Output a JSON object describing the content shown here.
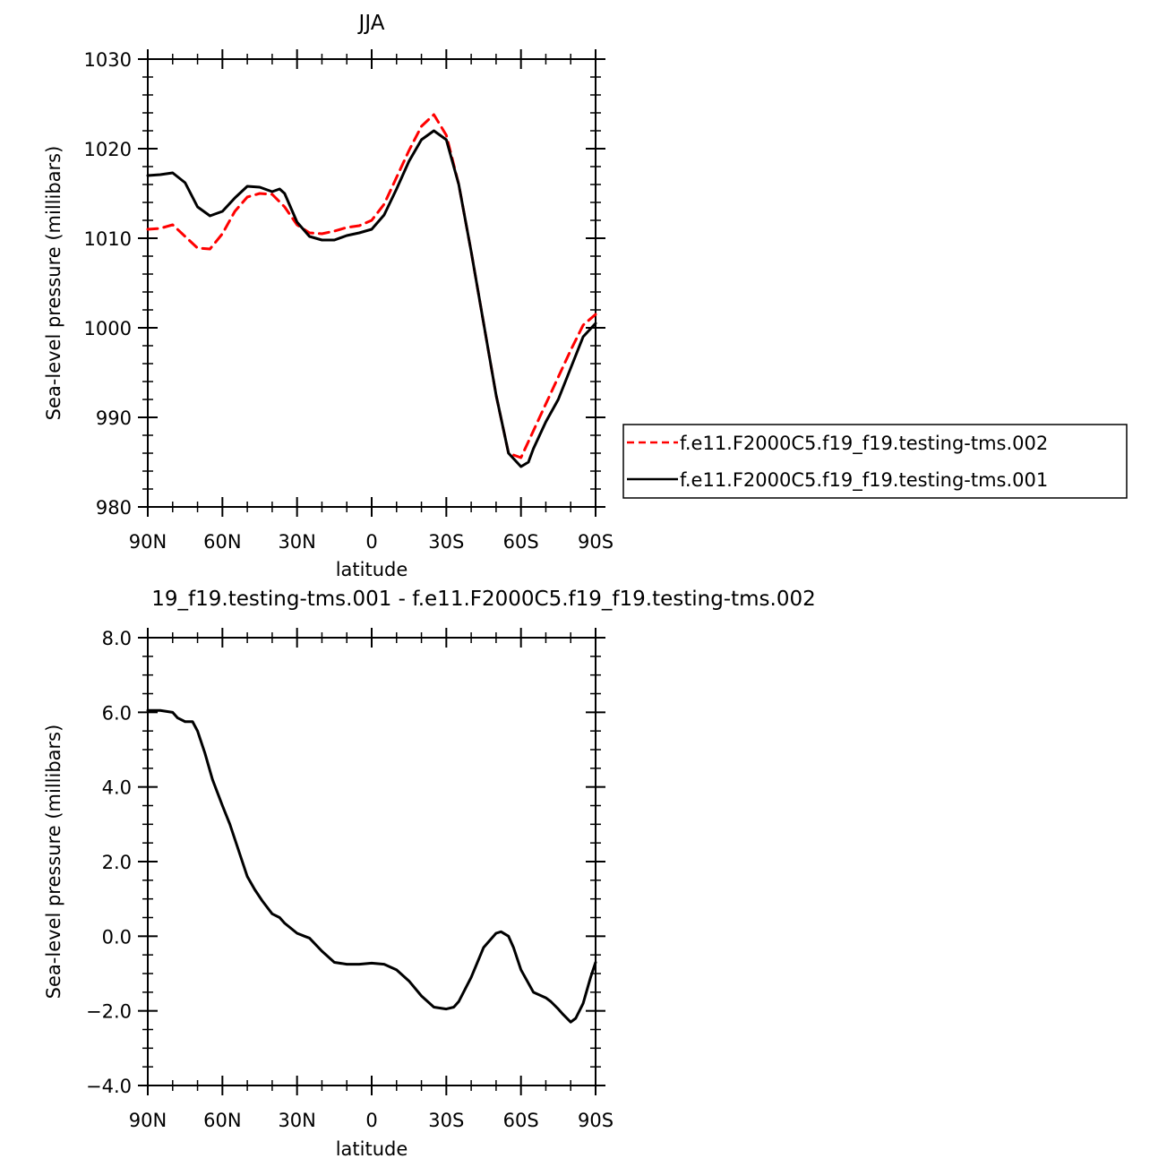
{
  "chart_data": [
    {
      "type": "line",
      "title": "JJA",
      "xlabel": "latitude",
      "ylabel": "Sea-level pressure (millibars)",
      "xlim": [
        90,
        -90
      ],
      "ylim": [
        980,
        1030
      ],
      "xticks": [
        90,
        60,
        30,
        0,
        -30,
        -60,
        -90
      ],
      "xtick_labels": [
        "90N",
        "60N",
        "30N",
        "0",
        "30S",
        "60S",
        "90S"
      ],
      "yticks": [
        980,
        990,
        1000,
        1010,
        1020,
        1030
      ],
      "ytick_labels": [
        "980",
        "990",
        "1000",
        "1010",
        "1020",
        "1030"
      ],
      "grid": false,
      "legend_position": "right",
      "series": [
        {
          "name": "f.e11.F2000C5.f19_f19.testing-tms.002",
          "color": "#ff0000",
          "dash": "dashed",
          "x": [
            90,
            85,
            80,
            75,
            70,
            65,
            60,
            55,
            50,
            45,
            40,
            35,
            30,
            25,
            20,
            15,
            10,
            5,
            0,
            -5,
            -10,
            -15,
            -20,
            -25,
            -30,
            -35,
            -40,
            -45,
            -50,
            -55,
            -60,
            -65,
            -70,
            -75,
            -80,
            -85,
            -90
          ],
          "y": [
            1011.0,
            1011.1,
            1011.5,
            1010.2,
            1008.9,
            1008.8,
            1010.5,
            1013.0,
            1014.6,
            1015.0,
            1014.9,
            1013.5,
            1011.5,
            1010.6,
            1010.5,
            1010.8,
            1011.2,
            1011.4,
            1012.0,
            1013.8,
            1016.8,
            1019.8,
            1022.5,
            1023.8,
            1021.5,
            1016.0,
            1008.5,
            1000.5,
            992.5,
            986.0,
            985.5,
            988.5,
            991.5,
            994.5,
            997.5,
            1000.3,
            1001.5
          ]
        },
        {
          "name": "f.e11.F2000C5.f19_f19.testing-tms.001",
          "color": "#000000",
          "dash": "solid",
          "x": [
            90,
            85,
            80,
            75,
            70,
            65,
            60,
            55,
            50,
            45,
            40,
            37,
            35,
            30,
            25,
            20,
            15,
            10,
            5,
            0,
            -5,
            -10,
            -15,
            -20,
            -25,
            -30,
            -35,
            -40,
            -45,
            -50,
            -55,
            -60,
            -63,
            -65,
            -70,
            -75,
            -80,
            -85,
            -90
          ],
          "y": [
            1017.0,
            1017.1,
            1017.3,
            1016.2,
            1013.5,
            1012.5,
            1013.0,
            1014.5,
            1015.8,
            1015.7,
            1015.2,
            1015.5,
            1015.0,
            1011.8,
            1010.2,
            1009.8,
            1009.8,
            1010.3,
            1010.6,
            1011.0,
            1012.6,
            1015.5,
            1018.6,
            1021.0,
            1022.0,
            1021.0,
            1016.0,
            1008.5,
            1000.5,
            992.5,
            986.0,
            984.5,
            985.0,
            986.5,
            989.5,
            992.0,
            995.5,
            999.0,
            1000.5
          ]
        }
      ]
    },
    {
      "type": "line",
      "title": "19_f19.testing-tms.001 - f.e11.F2000C5.f19_f19.testing-tms.002",
      "xlabel": "latitude",
      "ylabel": "Sea-level pressure (millibars)",
      "xlim": [
        90,
        -90
      ],
      "ylim": [
        -4.0,
        8.0
      ],
      "xticks": [
        90,
        60,
        30,
        0,
        -30,
        -60,
        -90
      ],
      "xtick_labels": [
        "90N",
        "60N",
        "30N",
        "0",
        "30S",
        "60S",
        "90S"
      ],
      "yticks": [
        -4.0,
        -2.0,
        0.0,
        2.0,
        4.0,
        6.0,
        8.0
      ],
      "ytick_labels": [
        "−4.0",
        "−2.0",
        "0.0",
        "2.0",
        "4.0",
        "6.0",
        "8.0"
      ],
      "grid": false,
      "series": [
        {
          "color": "#000000",
          "dash": "solid",
          "x": [
            90,
            85,
            80,
            78,
            75,
            72,
            70,
            67,
            64,
            60,
            57,
            54,
            50,
            47,
            44,
            40,
            37,
            35,
            30,
            27,
            25,
            20,
            15,
            10,
            5,
            0,
            -5,
            -10,
            -15,
            -20,
            -25,
            -30,
            -33,
            -35,
            -40,
            -45,
            -50,
            -52,
            -55,
            -57,
            -60,
            -65,
            -70,
            -72,
            -75,
            -77,
            -80,
            -82,
            -85,
            -88,
            -90
          ],
          "y": [
            6.05,
            6.05,
            6.0,
            5.85,
            5.75,
            5.75,
            5.5,
            4.9,
            4.2,
            3.5,
            3.0,
            2.4,
            1.6,
            1.25,
            0.95,
            0.6,
            0.5,
            0.35,
            0.08,
            0.0,
            -0.05,
            -0.4,
            -0.7,
            -0.75,
            -0.75,
            -0.72,
            -0.75,
            -0.9,
            -1.2,
            -1.6,
            -1.9,
            -1.95,
            -1.9,
            -1.75,
            -1.1,
            -0.3,
            0.08,
            0.12,
            0.0,
            -0.3,
            -0.9,
            -1.5,
            -1.65,
            -1.75,
            -1.95,
            -2.1,
            -2.3,
            -2.2,
            -1.8,
            -1.1,
            -0.7
          ]
        }
      ]
    }
  ]
}
